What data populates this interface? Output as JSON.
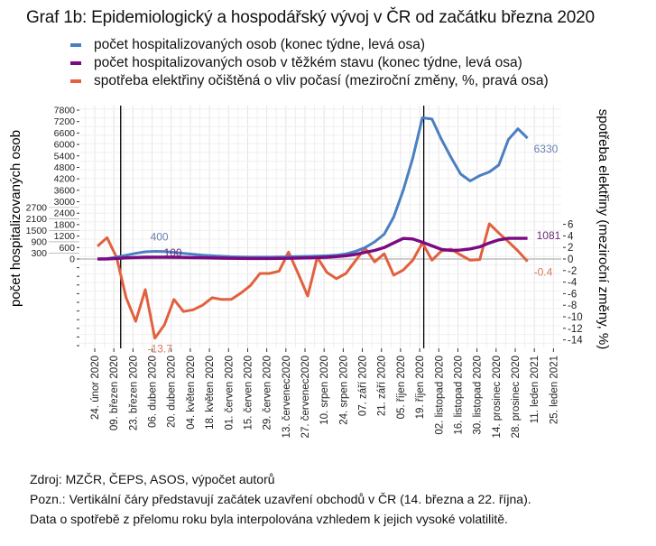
{
  "title": "Graf 1b: Epidemiologický a hospodářský vývoj v ČR od začátku března 2020",
  "legend": [
    {
      "label": "počet hospitalizovaných osob (konec týdne, levá osa)",
      "color": "#4a7fc1"
    },
    {
      "label": "počet hospitalizovaných osob v těžkém stavu (konec týdne, levá osa)",
      "color": "#7b0a82"
    },
    {
      "label": "spotřeba elektřiny očištěná o vliv počasí (meziroční změny, %, pravá osa)",
      "color": "#e2603e"
    }
  ],
  "footer": [
    "Zdroj: MZČR, ČEPS, ASOS, výpočet autorů",
    "Pozn.: Vertikální čáry představují začátek uzavření obchodů v ČR (14. března a 22. října).",
    "Data o spotřebě z přelomu roku byla interpolována vzhledem k jejich vysoké volatilitě."
  ],
  "chart_data": {
    "type": "line",
    "ylabel": "počet hospitalizovaných osob",
    "y2label": "spotřeba elektřiny (meziroční změny, %)",
    "ylim": [
      0,
      7800
    ],
    "y2lim": [
      -14,
      6
    ],
    "yticks": [
      0,
      300,
      600,
      900,
      1200,
      1500,
      1800,
      2100,
      2400,
      2700,
      3000,
      3600,
      4200,
      4800,
      5400,
      6000,
      6600,
      7200,
      7800
    ],
    "y2ticks": [
      6,
      4,
      2,
      0,
      -2,
      -4,
      -6,
      -8,
      -10,
      -12,
      -14
    ],
    "xticks": [
      "2020-02-24",
      "2020-03-09",
      "2020-03-23",
      "2020-04-06",
      "2020-04-20",
      "2020-05-04",
      "2020-05-18",
      "2020-06-01",
      "2020-06-15",
      "2020-06-29",
      "2020-07-13",
      "2020-07-27",
      "2020-08-10",
      "2020-08-24",
      "2020-09-07",
      "2020-09-21",
      "2020-10-05",
      "2020-10-19",
      "2020-11-02",
      "2020-11-16",
      "2020-11-30",
      "2020-12-14",
      "2020-12-28",
      "2021-01-11",
      "2021-01-25"
    ],
    "xticklabels": [
      "24. únor 2020",
      "09. březen 2020",
      "23. březen 2020",
      "06. duben 2020",
      "20. duben 2020",
      "04. květen 2020",
      "18. květen 2020",
      "01. červen 2020",
      "15. červen 2020",
      "29. červen 2020",
      "13. červenec2020",
      "27. červenec2020",
      "10. srpen 2020",
      "24. srpen 2020",
      "07. září 2020",
      "21. září 2020",
      "05. říjen 2020",
      "19. říjen 2020",
      "02. listopad 2020",
      "16. listopad 2020",
      "30. listopad 2020",
      "14. prosinec 2020",
      "28. prosinec 2020",
      "11. leden 2021",
      "25. leden 2021"
    ],
    "vlines": [
      "2020-03-14",
      "2020-10-22"
    ],
    "grid": true,
    "x": [
      "2020-02-26",
      "2020-03-04",
      "2020-03-11",
      "2020-03-18",
      "2020-03-25",
      "2020-04-01",
      "2020-04-08",
      "2020-04-15",
      "2020-04-22",
      "2020-04-29",
      "2020-05-06",
      "2020-05-13",
      "2020-05-20",
      "2020-05-27",
      "2020-06-03",
      "2020-06-10",
      "2020-06-17",
      "2020-06-24",
      "2020-07-01",
      "2020-07-08",
      "2020-07-15",
      "2020-07-22",
      "2020-07-29",
      "2020-08-05",
      "2020-08-12",
      "2020-08-19",
      "2020-08-26",
      "2020-09-02",
      "2020-09-09",
      "2020-09-16",
      "2020-09-23",
      "2020-09-30",
      "2020-10-07",
      "2020-10-14",
      "2020-10-21",
      "2020-10-28",
      "2020-11-04",
      "2020-11-11",
      "2020-11-18",
      "2020-11-25",
      "2020-12-02",
      "2020-12-09",
      "2020-12-16",
      "2020-12-23",
      "2020-12-30",
      "2021-01-06"
    ],
    "series": [
      {
        "axis": "left",
        "color": "#4a7fc1",
        "values": [
          0,
          20,
          100,
          200,
          300,
          380,
          400,
          390,
          350,
          300,
          250,
          200,
          170,
          140,
          120,
          110,
          100,
          100,
          100,
          110,
          120,
          130,
          140,
          150,
          170,
          200,
          270,
          400,
          600,
          900,
          1300,
          2200,
          3600,
          5300,
          7400,
          7330,
          6260,
          5320,
          4450,
          4090,
          4370,
          4560,
          4920,
          6260,
          6820,
          6330
        ],
        "labels": [
          {
            "index": 6,
            "text": "400"
          },
          {
            "index": 45,
            "text": "6330"
          }
        ]
      },
      {
        "axis": "left",
        "color": "#7b0a82",
        "values": [
          0,
          5,
          30,
          60,
          80,
          95,
          100,
          100,
          95,
          85,
          75,
          65,
          55,
          45,
          40,
          35,
          30,
          30,
          30,
          35,
          40,
          50,
          60,
          75,
          95,
          130,
          170,
          240,
          350,
          450,
          600,
          840,
          1080,
          1050,
          880,
          690,
          500,
          450,
          470,
          530,
          640,
          840,
          1000,
          1081,
          1081,
          1081
        ],
        "labels": [
          {
            "index": 6,
            "text": "100"
          },
          {
            "index": 45,
            "text": "1081"
          }
        ]
      },
      {
        "axis": "right",
        "color": "#e2603e",
        "values": [
          2.2,
          3.7,
          0.3,
          -6.7,
          -10.8,
          -5.3,
          -13.7,
          -11.4,
          -7,
          -9.1,
          -8.8,
          -8,
          -6.7,
          -7,
          -7,
          -5.9,
          -4.6,
          -2.5,
          -2.5,
          -2.1,
          1.2,
          -2.5,
          -6.4,
          0.3,
          -2.3,
          -3.4,
          -2.5,
          -0.3,
          1.9,
          -0.5,
          0.9,
          -2.8,
          -1.9,
          -0.2,
          2.8,
          -0.2,
          1.4,
          1.7,
          0.7,
          -0.2,
          -0.1,
          6.1,
          4.5,
          3.0,
          1.4,
          -0.4
        ],
        "labels": [
          {
            "index": 6,
            "text": "-13.7"
          },
          {
            "index": 45,
            "text": "-0.4"
          }
        ]
      }
    ]
  }
}
